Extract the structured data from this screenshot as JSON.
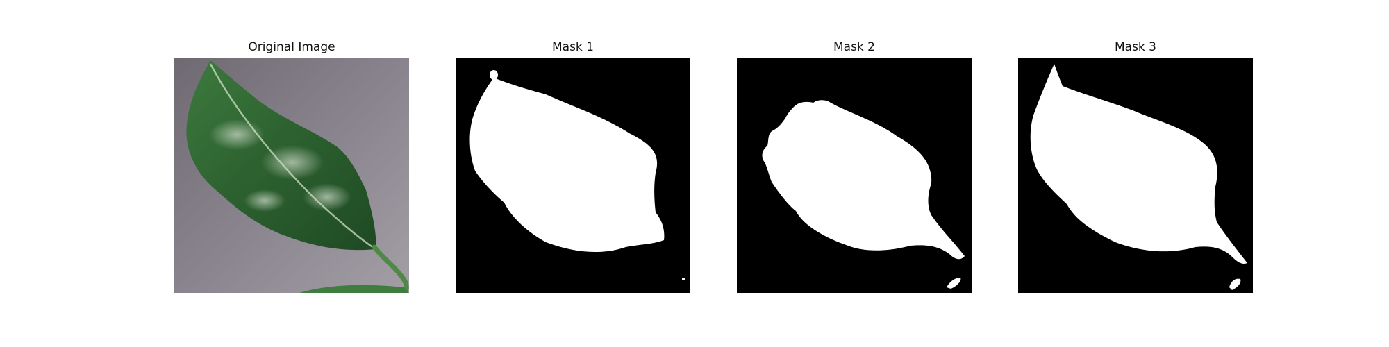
{
  "figure": {
    "panels": [
      {
        "title": "Original Image"
      },
      {
        "title": "Mask 1"
      },
      {
        "title": "Mask 2"
      },
      {
        "title": "Mask 3"
      }
    ]
  },
  "colors": {
    "mask_background": "#000000",
    "mask_foreground": "#ffffff",
    "leaf_green": "#2f6a33",
    "table_surface": "#8e8791"
  }
}
